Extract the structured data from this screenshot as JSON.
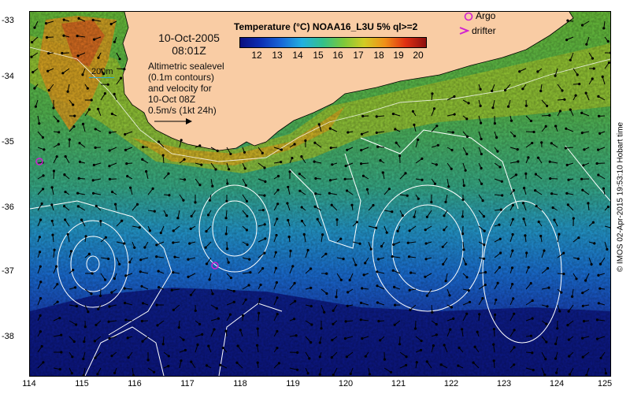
{
  "colorbar": {
    "title": "Temperature (°C) NOAA16_L3U 5% ql>=2",
    "ticks": [
      "12",
      "13",
      "14",
      "15",
      "16",
      "17",
      "18",
      "19",
      "20"
    ],
    "colors": [
      "#0a0f80",
      "#0c2fb4",
      "#1a68d8",
      "#22b0e0",
      "#33c08a",
      "#7cc83a",
      "#d2cc24",
      "#f09018",
      "#e03012",
      "#8c1010"
    ]
  },
  "timestamp": {
    "date": "10-Oct-2005",
    "time": "08:01Z"
  },
  "scale_label": "200m",
  "info": {
    "lines": [
      "Altimetric sealevel",
      "(0.1m contours)",
      "and velocity for",
      "10-Oct 08Z",
      "0.5m/s (1kt 24h)"
    ]
  },
  "legend": {
    "argo": "Argo",
    "drifter": "drifter"
  },
  "credit": "© IMOS 02-Apr-2015 19:53:10 Hobart time",
  "axes": {
    "lat_ticks": [
      "-33",
      "-34",
      "-35",
      "-36",
      "-37",
      "-38"
    ],
    "lon_ticks": [
      "114",
      "115",
      "116",
      "117",
      "118",
      "119",
      "120",
      "121",
      "122",
      "123",
      "124",
      "125"
    ]
  },
  "colors": {
    "land": "#f9cca4",
    "argo_marker": "#d020d0"
  }
}
